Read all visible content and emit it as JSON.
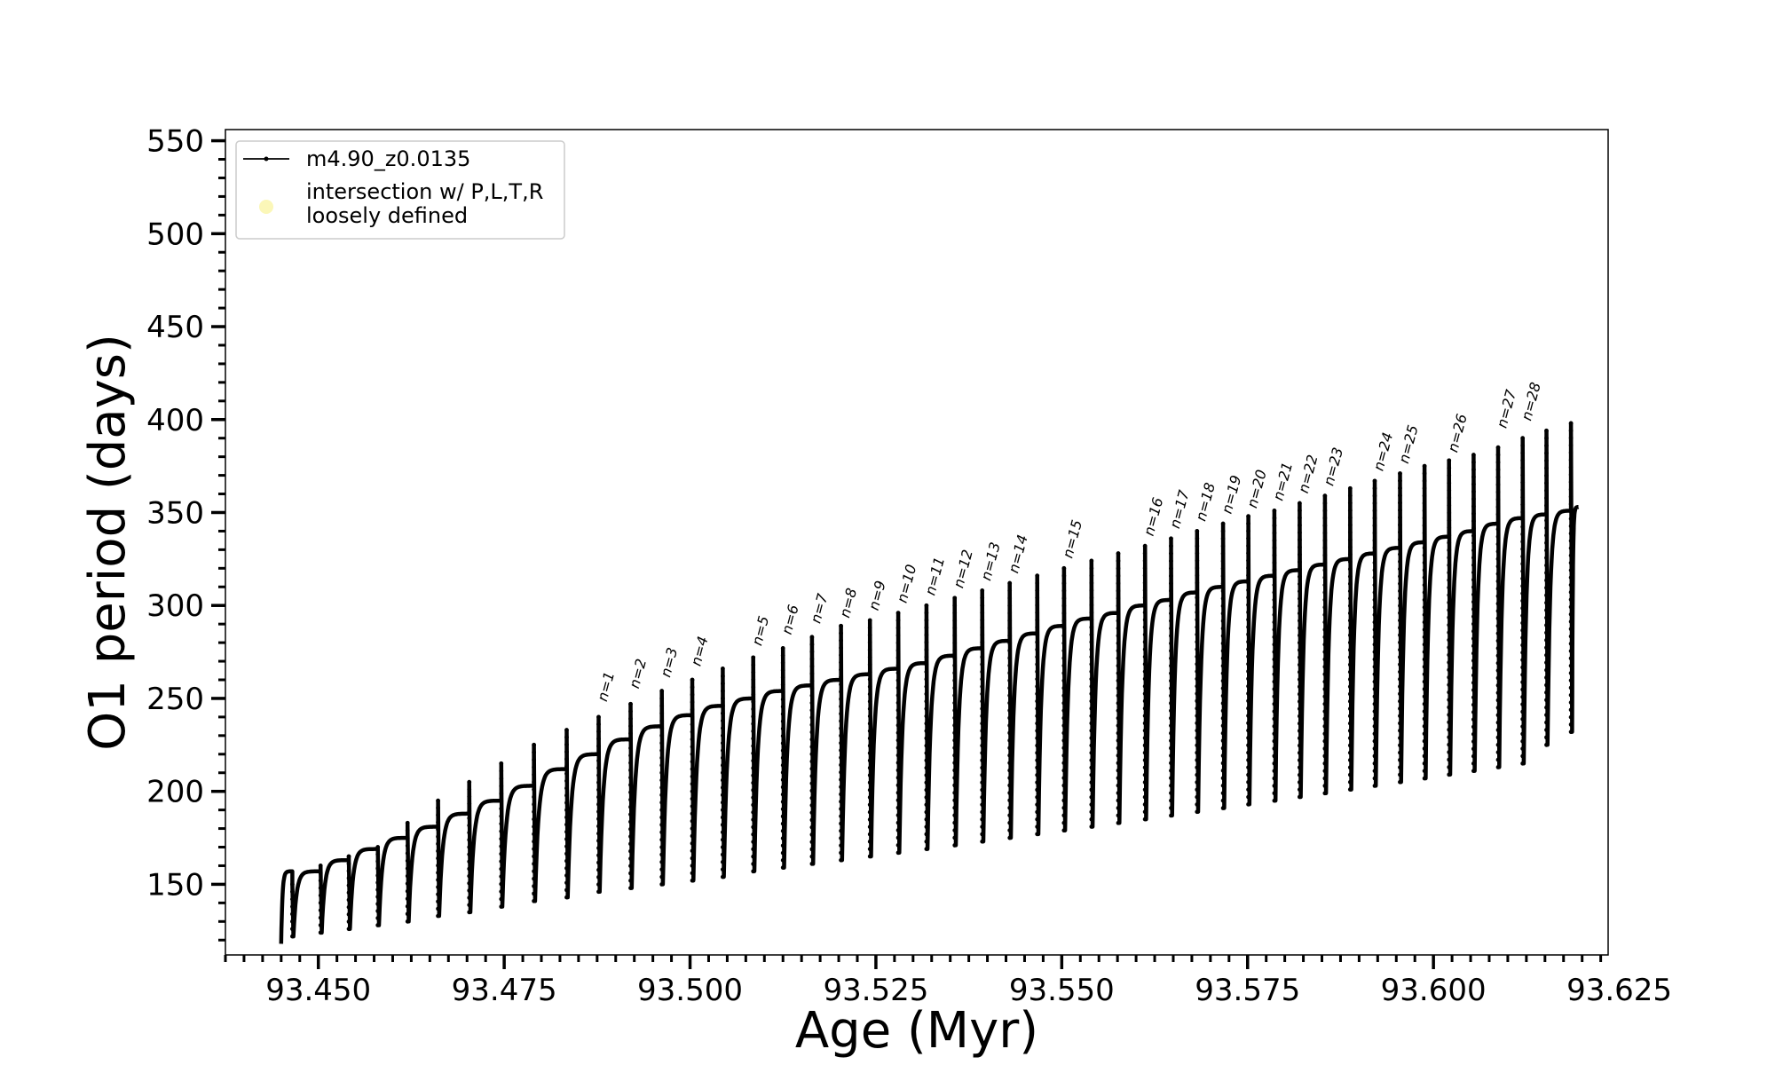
{
  "chart_data": {
    "type": "line",
    "xlabel": "Age (Myr)",
    "ylabel": "O1 period (days)",
    "xlim": [
      93.4375,
      93.6235
    ],
    "ylim": [
      112,
      556
    ],
    "x_ticks": [
      93.45,
      93.475,
      93.5,
      93.525,
      93.55,
      93.575,
      93.6,
      93.625
    ],
    "x_tick_labels": [
      "93.450",
      "93.475",
      "93.500",
      "93.525",
      "93.550",
      "93.575",
      "93.600",
      "93.625"
    ],
    "x_minor_step": 0.0025,
    "y_ticks": [
      150,
      200,
      250,
      300,
      350,
      400,
      450,
      500,
      550
    ],
    "y_tick_labels": [
      "150",
      "200",
      "250",
      "300",
      "350",
      "400",
      "450",
      "500",
      "550"
    ],
    "y_minor_step": 10,
    "grid": false,
    "legend": {
      "placement": "top-left",
      "entries": [
        {
          "label": "m4.90_z0.0135",
          "marker": "line-dot",
          "color": "#000000"
        },
        {
          "label_lines": [
            "intersection w/ P,L,T,R",
            "loosely defined"
          ],
          "marker": "circle",
          "color": "#fbf7b8"
        }
      ]
    },
    "series": [
      {
        "name": "m4.90_z0.0135",
        "color": "#000000",
        "pulse_ages": [
          93.4465,
          93.4503,
          93.4541,
          93.458,
          93.462,
          93.4661,
          93.4703,
          93.4746,
          93.479,
          93.4834,
          93.4877,
          93.492,
          93.4962,
          93.5003,
          93.5044,
          93.5085,
          93.5125,
          93.5164,
          93.5203,
          93.5242,
          93.528,
          93.5318,
          93.5356,
          93.5393,
          93.543,
          93.5467,
          93.5503,
          93.554,
          93.5576,
          93.5612,
          93.5647,
          93.5682,
          93.5717,
          93.5751,
          93.5786,
          93.582,
          93.5854,
          93.5888,
          93.5921,
          93.5955,
          93.5988,
          93.6021,
          93.6054,
          93.6087,
          93.612,
          93.6152,
          93.6185
        ],
        "end_age": 93.6195,
        "end_period": 353,
        "first_cycle_start": {
          "age": 93.445,
          "period": 118
        },
        "envelope": {
          "age": [
            93.445,
            93.4465,
            93.4503,
            93.4541,
            93.458,
            93.462,
            93.4661,
            93.4703,
            93.4746,
            93.479,
            93.4834,
            93.4877,
            93.492,
            93.4962,
            93.5003,
            93.5044,
            93.5085,
            93.5125,
            93.5164,
            93.5203,
            93.5242,
            93.528,
            93.5318,
            93.5356,
            93.5393,
            93.543,
            93.5467,
            93.5503,
            93.554,
            93.5576,
            93.5612,
            93.5647,
            93.5682,
            93.5717,
            93.5751,
            93.5786,
            93.582,
            93.5854,
            93.5888,
            93.5921,
            93.5955,
            93.5988,
            93.6021,
            93.6054,
            93.6087,
            93.612,
            93.6152,
            93.6185
          ],
          "peak": [
            145,
            150,
            160,
            165,
            170,
            183,
            195,
            205,
            215,
            225,
            233,
            240,
            247,
            254,
            260,
            266,
            272,
            277,
            283,
            289,
            292,
            296,
            300,
            304,
            308,
            312,
            316,
            320,
            324,
            328,
            332,
            336,
            340,
            344,
            348,
            351,
            355,
            359,
            363,
            367,
            371,
            375,
            378,
            381,
            385,
            390,
            394,
            398
          ],
          "trough": [
            118,
            122,
            124,
            126,
            128,
            130,
            133,
            135,
            138,
            141,
            143,
            146,
            148,
            150,
            152,
            154,
            157,
            159,
            161,
            163,
            165,
            167,
            169,
            171,
            173,
            175,
            177,
            179,
            181,
            183,
            185,
            187,
            189,
            191,
            193,
            195,
            197,
            199,
            201,
            203,
            205,
            207,
            209,
            211,
            213,
            215,
            225,
            232
          ],
          "plateau": [
            157,
            157,
            163,
            169,
            175,
            181,
            188,
            195,
            203,
            212,
            220,
            228,
            235,
            241,
            246,
            250,
            254,
            257,
            260,
            263,
            266,
            269,
            273,
            277,
            281,
            285,
            289,
            293,
            296,
            300,
            303,
            307,
            310,
            313,
            316,
            319,
            322,
            325,
            328,
            331,
            334,
            337,
            340,
            344,
            347,
            349,
            351,
            353
          ]
        }
      }
    ],
    "annotations": [
      {
        "text": "n=1",
        "age": 93.4877,
        "period": 247
      },
      {
        "text": "n=2",
        "age": 93.492,
        "period": 254
      },
      {
        "text": "n=3",
        "age": 93.4962,
        "period": 260
      },
      {
        "text": "n=4",
        "age": 93.5003,
        "period": 266
      },
      {
        "text": "n=5",
        "age": 93.5085,
        "period": 277
      },
      {
        "text": "n=6",
        "age": 93.5125,
        "period": 283
      },
      {
        "text": "n=7",
        "age": 93.5164,
        "period": 289
      },
      {
        "text": "n=8",
        "age": 93.5203,
        "period": 292
      },
      {
        "text": "n=9",
        "age": 93.5242,
        "period": 296
      },
      {
        "text": "n=10",
        "age": 93.528,
        "period": 300
      },
      {
        "text": "n=11",
        "age": 93.5318,
        "period": 304
      },
      {
        "text": "n=12",
        "age": 93.5356,
        "period": 308
      },
      {
        "text": "n=13",
        "age": 93.5393,
        "period": 312
      },
      {
        "text": "n=14",
        "age": 93.543,
        "period": 316
      },
      {
        "text": "n=15",
        "age": 93.5503,
        "period": 324
      },
      {
        "text": "n=16",
        "age": 93.5612,
        "period": 336
      },
      {
        "text": "n=17",
        "age": 93.5647,
        "period": 340
      },
      {
        "text": "n=18",
        "age": 93.5682,
        "period": 344
      },
      {
        "text": "n=19",
        "age": 93.5717,
        "period": 348
      },
      {
        "text": "n=20",
        "age": 93.5751,
        "period": 351
      },
      {
        "text": "n=21",
        "age": 93.5786,
        "period": 355
      },
      {
        "text": "n=22",
        "age": 93.582,
        "period": 359
      },
      {
        "text": "n=23",
        "age": 93.5854,
        "period": 363
      },
      {
        "text": "n=24",
        "age": 93.5921,
        "period": 371
      },
      {
        "text": "n=25",
        "age": 93.5955,
        "period": 375
      },
      {
        "text": "n=26",
        "age": 93.6021,
        "period": 381
      },
      {
        "text": "n=27",
        "age": 93.6087,
        "period": 394
      },
      {
        "text": "n=28",
        "age": 93.612,
        "period": 398
      }
    ]
  }
}
